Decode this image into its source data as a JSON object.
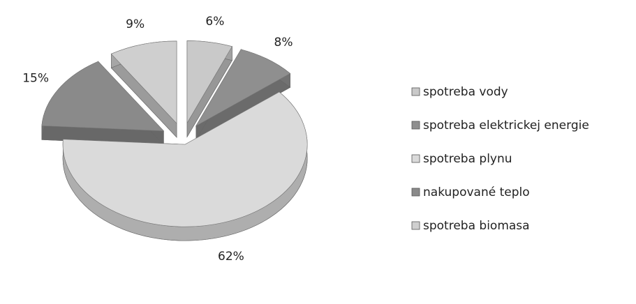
{
  "chart_data": {
    "type": "pie",
    "categories": [
      "spotreba vody",
      "spotreba elektrickej energie",
      "spotreba plynu",
      "nakupované teplo",
      "spotreba biomasa"
    ],
    "values": [
      6,
      8,
      62,
      15,
      9
    ],
    "value_labels": [
      "6%",
      "8%",
      "62%",
      "15%",
      "9%"
    ],
    "colors": [
      "#c9c9c9",
      "#8f8f8f",
      "#dadada",
      "#8a8a8a",
      "#cfcfcf"
    ]
  }
}
